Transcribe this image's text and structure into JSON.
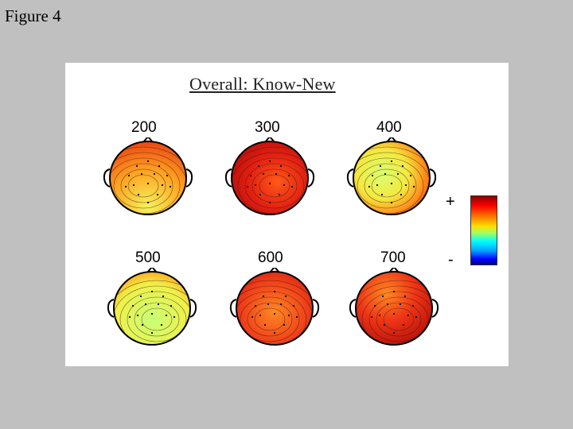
{
  "slide": {
    "title": "Figure 4"
  },
  "figure": {
    "title": "Overall: Know-New",
    "maps": [
      {
        "latency": "200",
        "pattern": "orange-top-yellow-bottom"
      },
      {
        "latency": "300",
        "pattern": "red-dominant"
      },
      {
        "latency": "400",
        "pattern": "yellow-green-center"
      },
      {
        "latency": "500",
        "pattern": "yellow-green-wide"
      },
      {
        "latency": "600",
        "pattern": "red-orange-saddle"
      },
      {
        "latency": "700",
        "pattern": "dark-red-frontal"
      }
    ],
    "colorbar": {
      "plus_label": "+",
      "minus_label": "-"
    }
  }
}
